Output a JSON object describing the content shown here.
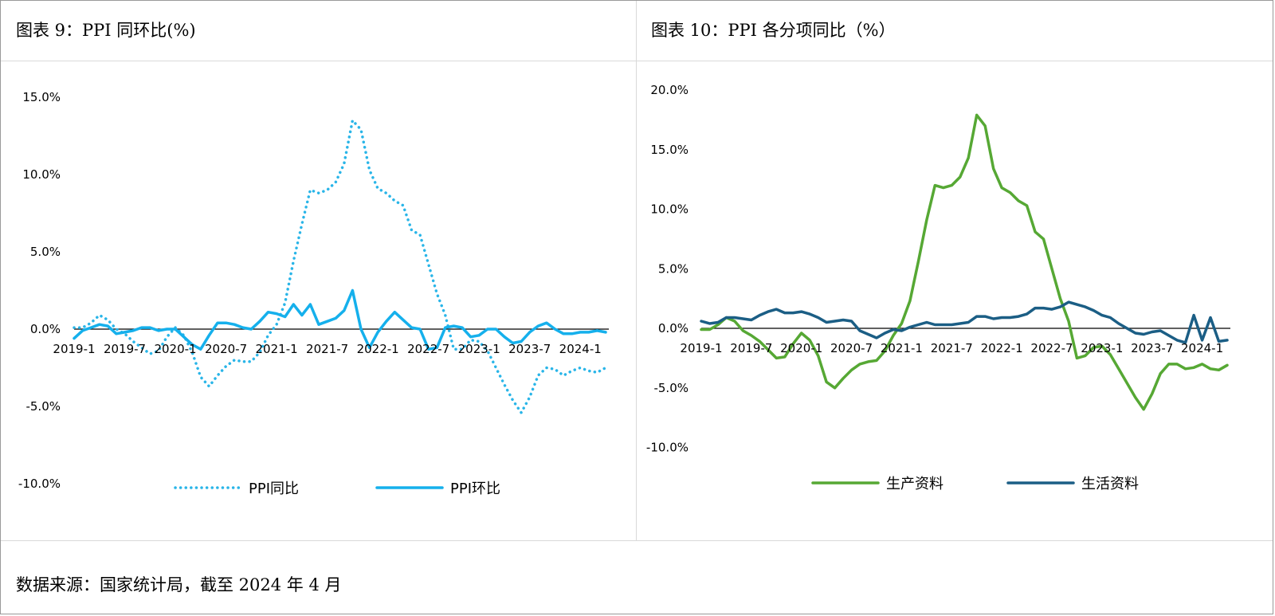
{
  "source_note": "数据来源：国家统计局，截至 2024 年 4 月",
  "colors": {
    "ppi_yoy": "#29b5e8",
    "ppi_mom": "#15b0ec",
    "production": "#56a834",
    "living": "#1b5e85",
    "axis": "#000000",
    "border": "#999999",
    "divider": "#d9d9d9"
  },
  "chart_data": [
    {
      "type": "line",
      "title": "图表 9：PPI 同环比(%)",
      "x": [
        "2019-1",
        "2019-2",
        "2019-3",
        "2019-4",
        "2019-5",
        "2019-6",
        "2019-7",
        "2019-8",
        "2019-9",
        "2019-10",
        "2019-11",
        "2019-12",
        "2020-1",
        "2020-2",
        "2020-3",
        "2020-4",
        "2020-5",
        "2020-6",
        "2020-7",
        "2020-8",
        "2020-9",
        "2020-10",
        "2020-11",
        "2020-12",
        "2021-1",
        "2021-2",
        "2021-3",
        "2021-4",
        "2021-5",
        "2021-6",
        "2021-7",
        "2021-8",
        "2021-9",
        "2021-10",
        "2021-11",
        "2021-12",
        "2022-1",
        "2022-2",
        "2022-3",
        "2022-4",
        "2022-5",
        "2022-6",
        "2022-7",
        "2022-8",
        "2022-9",
        "2022-10",
        "2022-11",
        "2022-12",
        "2023-1",
        "2023-2",
        "2023-3",
        "2023-4",
        "2023-5",
        "2023-6",
        "2023-7",
        "2023-8",
        "2023-9",
        "2023-10",
        "2023-11",
        "2023-12",
        "2024-1",
        "2024-2",
        "2024-3",
        "2024-4"
      ],
      "xticks": [
        "2019-1",
        "2019-7",
        "2020-1",
        "2020-7",
        "2021-1",
        "2021-7",
        "2022-1",
        "2022-7",
        "2023-1",
        "2023-7",
        "2024-1"
      ],
      "yticks": [
        "15.0%",
        "10.0%",
        "5.0%",
        "0.0%",
        "-5.0%",
        "-10.0%"
      ],
      "ylim": [
        -10,
        15
      ],
      "legend_position": "bottom",
      "series": [
        {
          "name": "PPI同比",
          "style": "dotted",
          "values": [
            0.1,
            0.1,
            0.4,
            0.9,
            0.6,
            0.0,
            -0.3,
            -0.8,
            -1.2,
            -1.6,
            -1.4,
            -0.5,
            0.1,
            -0.4,
            -1.5,
            -3.1,
            -3.7,
            -3.0,
            -2.4,
            -2.0,
            -2.1,
            -2.1,
            -1.5,
            -0.4,
            0.3,
            1.7,
            4.4,
            6.8,
            9.0,
            8.8,
            9.0,
            9.5,
            10.7,
            13.5,
            12.9,
            10.3,
            9.1,
            8.8,
            8.3,
            8.0,
            6.4,
            6.1,
            4.2,
            2.3,
            0.9,
            -1.3,
            -1.3,
            -0.7,
            -0.8,
            -1.4,
            -2.5,
            -3.6,
            -4.6,
            -5.4,
            -4.4,
            -3.0,
            -2.5,
            -2.6,
            -3.0,
            -2.7,
            -2.5,
            -2.7,
            -2.8,
            -2.5
          ]
        },
        {
          "name": "PPI环比",
          "style": "solid",
          "values": [
            -0.6,
            -0.1,
            0.1,
            0.3,
            0.2,
            -0.3,
            -0.2,
            -0.1,
            0.1,
            0.1,
            -0.1,
            0.0,
            0.0,
            -0.5,
            -1.0,
            -1.3,
            -0.4,
            0.4,
            0.4,
            0.3,
            0.1,
            0.0,
            0.5,
            1.1,
            1.0,
            0.8,
            1.6,
            0.9,
            1.6,
            0.3,
            0.5,
            0.7,
            1.2,
            2.5,
            0.0,
            -1.2,
            -0.2,
            0.5,
            1.1,
            0.6,
            0.1,
            0.0,
            -1.3,
            -1.2,
            0.1,
            0.2,
            0.1,
            -0.5,
            -0.4,
            0.0,
            0.0,
            -0.5,
            -0.9,
            -0.8,
            -0.2,
            0.2,
            0.4,
            0.0,
            -0.3,
            -0.3,
            -0.2,
            -0.2,
            -0.1,
            -0.2
          ]
        }
      ]
    },
    {
      "type": "line",
      "title": "图表 10：PPI 各分项同比（%）",
      "x": [
        "2019-1",
        "2019-2",
        "2019-3",
        "2019-4",
        "2019-5",
        "2019-6",
        "2019-7",
        "2019-8",
        "2019-9",
        "2019-10",
        "2019-11",
        "2019-12",
        "2020-1",
        "2020-2",
        "2020-3",
        "2020-4",
        "2020-5",
        "2020-6",
        "2020-7",
        "2020-8",
        "2020-9",
        "2020-10",
        "2020-11",
        "2020-12",
        "2021-1",
        "2021-2",
        "2021-3",
        "2021-4",
        "2021-5",
        "2021-6",
        "2021-7",
        "2021-8",
        "2021-9",
        "2021-10",
        "2021-11",
        "2021-12",
        "2022-1",
        "2022-2",
        "2022-3",
        "2022-4",
        "2022-5",
        "2022-6",
        "2022-7",
        "2022-8",
        "2022-9",
        "2022-10",
        "2022-11",
        "2022-12",
        "2023-1",
        "2023-2",
        "2023-3",
        "2023-4",
        "2023-5",
        "2023-6",
        "2023-7",
        "2023-8",
        "2023-9",
        "2023-10",
        "2023-11",
        "2023-12",
        "2024-1",
        "2024-2",
        "2024-3",
        "2024-4"
      ],
      "xticks": [
        "2019-1",
        "2019-7",
        "2020-1",
        "2020-7",
        "2021-1",
        "2021-7",
        "2022-1",
        "2022-7",
        "2023-1",
        "2023-7",
        "2024-1"
      ],
      "yticks": [
        "20.0%",
        "15.0%",
        "10.0%",
        "5.0%",
        "0.0%",
        "-5.0%",
        "-10.0%"
      ],
      "ylim": [
        -10,
        20
      ],
      "legend_position": "bottom",
      "series": [
        {
          "name": "生产资料",
          "style": "solid",
          "values": [
            -0.1,
            -0.1,
            0.3,
            0.9,
            0.6,
            -0.2,
            -0.6,
            -1.1,
            -1.8,
            -2.5,
            -2.4,
            -1.3,
            -0.4,
            -1.0,
            -2.3,
            -4.5,
            -5.0,
            -4.2,
            -3.5,
            -3.0,
            -2.8,
            -2.7,
            -1.9,
            -0.6,
            0.4,
            2.3,
            5.6,
            9.1,
            12.0,
            11.8,
            12.0,
            12.7,
            14.3,
            17.9,
            17.0,
            13.4,
            11.8,
            11.4,
            10.7,
            10.3,
            8.1,
            7.5,
            5.0,
            2.5,
            0.6,
            -2.5,
            -2.3,
            -1.6,
            -1.5,
            -2.2,
            -3.4,
            -4.6,
            -5.8,
            -6.8,
            -5.5,
            -3.8,
            -3.0,
            -3.0,
            -3.4,
            -3.3,
            -3.0,
            -3.4,
            -3.5,
            -3.1
          ]
        },
        {
          "name": "生活资料",
          "style": "solid",
          "values": [
            0.6,
            0.4,
            0.5,
            0.9,
            0.9,
            0.8,
            0.7,
            1.1,
            1.4,
            1.6,
            1.3,
            1.3,
            1.4,
            1.2,
            0.9,
            0.5,
            0.6,
            0.7,
            0.6,
            -0.2,
            -0.5,
            -0.8,
            -0.4,
            -0.1,
            -0.2,
            0.1,
            0.3,
            0.5,
            0.3,
            0.3,
            0.3,
            0.4,
            0.5,
            1.0,
            1.0,
            0.8,
            0.9,
            0.9,
            1.0,
            1.2,
            1.7,
            1.7,
            1.6,
            1.8,
            2.2,
            2.0,
            1.8,
            1.5,
            1.1,
            0.9,
            0.4,
            0.0,
            -0.4,
            -0.5,
            -0.3,
            -0.2,
            -0.6,
            -1.0,
            -1.2,
            1.1,
            -1.0,
            0.9,
            -1.1,
            -1.0
          ]
        }
      ]
    }
  ]
}
